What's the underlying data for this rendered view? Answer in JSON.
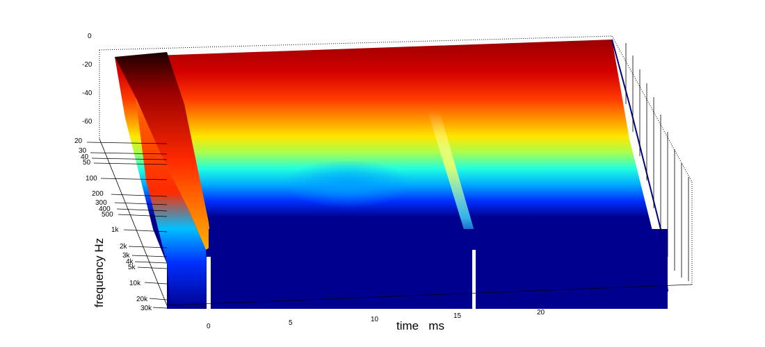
{
  "chart_data": {
    "type": "surface",
    "xlabel": "time   ms",
    "ylabel": "frequency   Hz",
    "zlabel": "",
    "x_ticks": [
      "0",
      "5",
      "10",
      "15",
      "20"
    ],
    "y_ticks": [
      "20",
      "30",
      "40",
      "50",
      "100",
      "200",
      "300",
      "400",
      "500",
      "1k",
      "2k",
      "3k",
      "4k",
      "5k",
      "10k",
      "20k",
      "30k"
    ],
    "z_ticks": [
      "0",
      "-20",
      "-40",
      "-60"
    ],
    "zlim": [
      -70,
      0
    ],
    "colormap": "jet",
    "grid": false,
    "reflections_ms": [
      0,
      15.8
    ]
  }
}
